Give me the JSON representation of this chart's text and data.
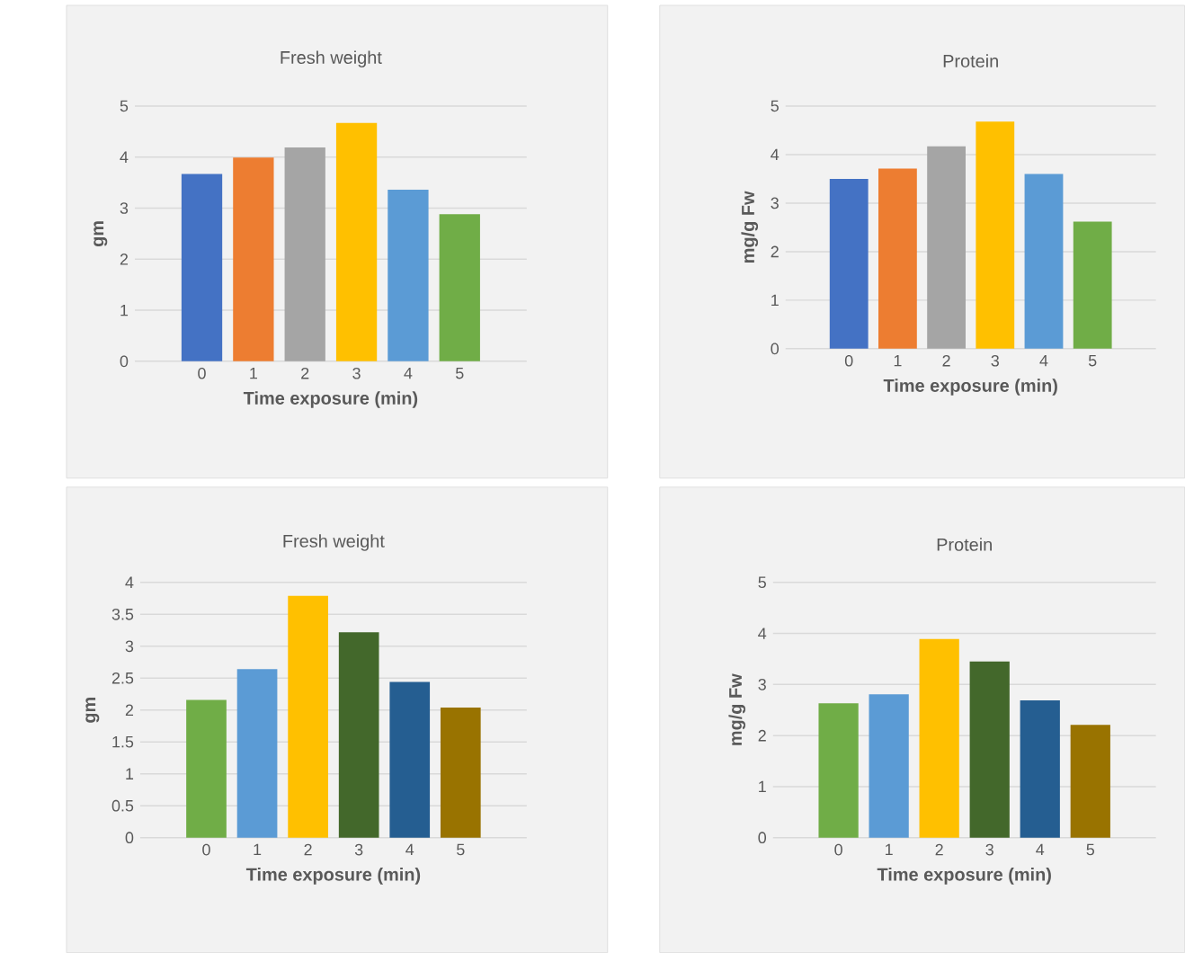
{
  "chart_data": [
    {
      "type": "bar",
      "title": "Fresh weight",
      "xlabel": "Time exposure (min)",
      "ylabel": "gm",
      "categories": [
        "0",
        "1",
        "2",
        "3",
        "4",
        "5"
      ],
      "values": [
        3.67,
        3.99,
        4.19,
        4.67,
        3.36,
        2.88
      ],
      "colors": [
        "#4472c4",
        "#ed7d31",
        "#a5a5a5",
        "#ffc000",
        "#5b9bd5",
        "#70ad47"
      ],
      "ylim": [
        0,
        5
      ],
      "yticks": [
        0,
        1,
        2,
        3,
        4,
        5
      ],
      "grid": "y"
    },
    {
      "type": "bar",
      "title": "Protein",
      "xlabel": "Time exposure (min)",
      "ylabel": "mg/g Fw",
      "categories": [
        "0",
        "1",
        "2",
        "3",
        "4",
        "5"
      ],
      "values": [
        3.5,
        3.71,
        4.17,
        4.68,
        3.6,
        2.62
      ],
      "colors": [
        "#4472c4",
        "#ed7d31",
        "#a5a5a5",
        "#ffc000",
        "#5b9bd5",
        "#70ad47"
      ],
      "ylim": [
        0,
        5
      ],
      "yticks": [
        0,
        1,
        2,
        3,
        4,
        5
      ],
      "grid": "y"
    },
    {
      "type": "bar",
      "title": "Fresh weight",
      "xlabel": "Time exposure (min)",
      "ylabel": "gm",
      "categories": [
        "0",
        "1",
        "2",
        "3",
        "4",
        "5"
      ],
      "values": [
        2.16,
        2.64,
        3.79,
        3.22,
        2.44,
        2.04
      ],
      "colors": [
        "#70ad47",
        "#5b9bd5",
        "#ffc000",
        "#43682b",
        "#255e91",
        "#997300"
      ],
      "ylim": [
        0,
        4
      ],
      "yticks": [
        0,
        0.5,
        1,
        1.5,
        2,
        2.5,
        3,
        3.5,
        4
      ],
      "grid": "y"
    },
    {
      "type": "bar",
      "title": "Protein",
      "xlabel": "Time exposure (min)",
      "ylabel": "mg/g Fw",
      "categories": [
        "0",
        "1",
        "2",
        "3",
        "4",
        "5"
      ],
      "values": [
        2.63,
        2.81,
        3.89,
        3.45,
        2.69,
        2.21
      ],
      "colors": [
        "#70ad47",
        "#5b9bd5",
        "#ffc000",
        "#43682b",
        "#255e91",
        "#997300"
      ],
      "ylim": [
        0,
        5
      ],
      "yticks": [
        0,
        1,
        2,
        3,
        4,
        5
      ],
      "grid": "y"
    }
  ]
}
